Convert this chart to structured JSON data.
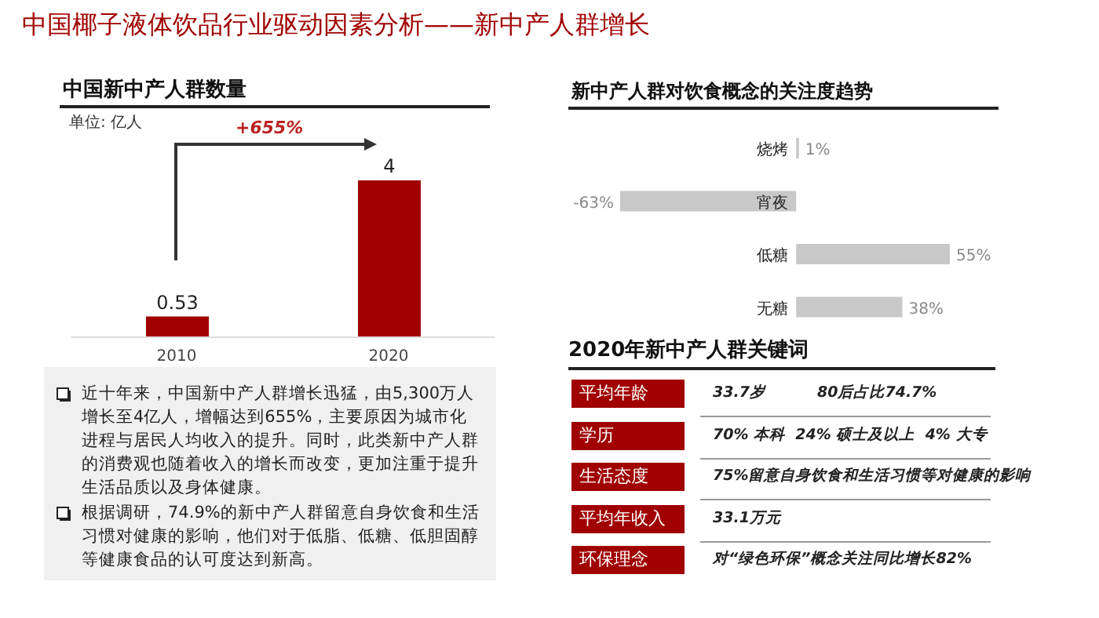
{
  "chart_data": [
    {
      "type": "other",
      "title": "中国椰子液体饮品行业驱动因素分析——新中产人群增长"
    },
    {
      "type": "bar",
      "title": "中国新中产人群数量",
      "subtitle": "单位: 亿人",
      "categories": [
        "2010",
        "2020"
      ],
      "values": [
        0.53,
        4
      ],
      "color": "#a00000",
      "data_labels": true,
      "annotations": [
        "+655%"
      ]
    },
    {
      "type": "other",
      "annotations": [
        "近十年来，中国新中产人群增长迅猛，由5,300万人增长至4亿人，增幅达到655%，主要原因为城市化进程与居民人均收入的提升。同时，此类新中产人群的消费观也随着收入的增长而改变，更加注重于提升生活品质以及身体健康。",
        "根据调研，74.9%的新中产人群留意自身饮食和生活习惯对健康的影响，他们对于低脂、低糖、低胆固醇等健康食品的认可度达到新高。"
      ]
    },
    {
      "type": "bar",
      "orientation": "horizontal",
      "title": "新中产人群对饮食概念的关注度趋势",
      "categories": [
        "烧烤",
        "宵夜",
        "低糖",
        "无糖"
      ],
      "values": [
        1,
        -63,
        55,
        38
      ],
      "value_labels": [
        "1%",
        "-63%",
        "55%",
        "38%"
      ],
      "color": "#c8c8c8"
    },
    {
      "type": "other",
      "title": "2020年新中产人群关键词",
      "categories": [
        "平均年龄",
        "学历",
        "生活态度",
        "平均年收入",
        "环保理念"
      ],
      "annotations": [
        "33.7岁          80后占比74.7%",
        "70% 本科  24% 硕士及以上  4% 大专",
        "75%留意自身饮食和生活习惯等对健康的影响",
        "33.1万元",
        "对“绿色环保”概念关注同比增长82%"
      ]
    }
  ]
}
